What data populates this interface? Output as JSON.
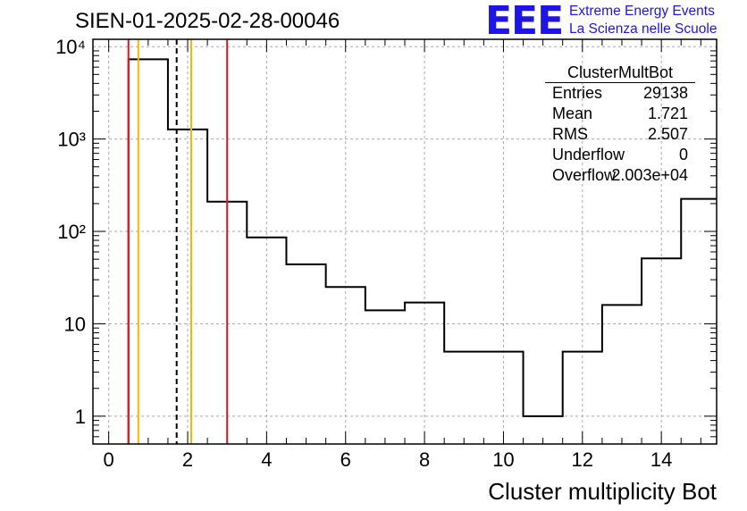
{
  "header": {
    "run_title": "SIEN-01-2025-02-28-00046",
    "logo_text": "EEE",
    "logo_line1": "Extreme Energy Events",
    "logo_line2": "La Scienza nelle Scuole"
  },
  "stats_box": {
    "title": "ClusterMultBot",
    "rows": [
      {
        "label": "Entries",
        "value": "29138"
      },
      {
        "label": "Mean",
        "value": "1.721"
      },
      {
        "label": "RMS",
        "value": "2.507"
      },
      {
        "label": "Underflow",
        "value": "0"
      },
      {
        "label": "Overflow",
        "value": "2.003e+04"
      }
    ]
  },
  "colors": {
    "histogram": "#000000",
    "grid": "#aaaaaa",
    "red_line": "#e8141b",
    "orange_line": "#f5b800",
    "dashed_line": "#000000",
    "logo": "#1f14e6"
  },
  "chart_data": {
    "type": "histogram",
    "xlabel": "Cluster multiplicity Bot",
    "ylabel": "",
    "xlim": [
      -0.4,
      15.4
    ],
    "ylim": [
      0.5,
      12000
    ],
    "y_scale": "log",
    "grid": true,
    "x_ticks": [
      0,
      2,
      4,
      6,
      8,
      10,
      12,
      14
    ],
    "x_tick_labels": [
      "0",
      "2",
      "4",
      "6",
      "8",
      "10",
      "12",
      "14"
    ],
    "y_ticks": [
      1,
      10,
      100,
      1000,
      10000
    ],
    "y_tick_labels": [
      "1",
      "10",
      "10²",
      "10³",
      "10⁴"
    ],
    "bins": [
      {
        "x_low": 0.5,
        "x_high": 1.5,
        "count": 7300
      },
      {
        "x_low": 1.5,
        "x_high": 2.5,
        "count": 1270
      },
      {
        "x_low": 2.5,
        "x_high": 3.5,
        "count": 210
      },
      {
        "x_low": 3.5,
        "x_high": 4.5,
        "count": 86
      },
      {
        "x_low": 4.5,
        "x_high": 5.5,
        "count": 44
      },
      {
        "x_low": 5.5,
        "x_high": 6.5,
        "count": 25
      },
      {
        "x_low": 6.5,
        "x_high": 7.5,
        "count": 14
      },
      {
        "x_low": 7.5,
        "x_high": 8.5,
        "count": 17
      },
      {
        "x_low": 8.5,
        "x_high": 9.5,
        "count": 5
      },
      {
        "x_low": 9.5,
        "x_high": 10.5,
        "count": 5
      },
      {
        "x_low": 10.5,
        "x_high": 11.5,
        "count": 1
      },
      {
        "x_low": 11.5,
        "x_high": 12.5,
        "count": 5
      },
      {
        "x_low": 12.5,
        "x_high": 13.5,
        "count": 16
      },
      {
        "x_low": 13.5,
        "x_high": 14.5,
        "count": 51
      },
      {
        "x_low": 14.5,
        "x_high": 15.4,
        "count": 225
      }
    ],
    "vertical_lines": [
      {
        "x": 0.5,
        "style": "red"
      },
      {
        "x": 3.0,
        "style": "red"
      },
      {
        "x": 0.75,
        "style": "orange"
      },
      {
        "x": 2.09,
        "style": "orange"
      },
      {
        "x": 1.721,
        "style": "dashed"
      }
    ]
  }
}
